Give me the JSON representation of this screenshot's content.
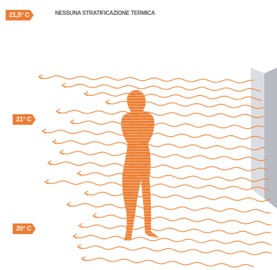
{
  "title": "NESSUNA STRATIFICAZIONE TERMICA",
  "temperatures": {
    "top": "21,5° C",
    "middle": "21° C",
    "bottom": "20° C"
  },
  "colors": {
    "accent": "#EE7D34",
    "wave": "#F0883E",
    "wall_front": "#DCDDE2",
    "wall_side": "#B9BBC3",
    "text": "#555555"
  }
}
